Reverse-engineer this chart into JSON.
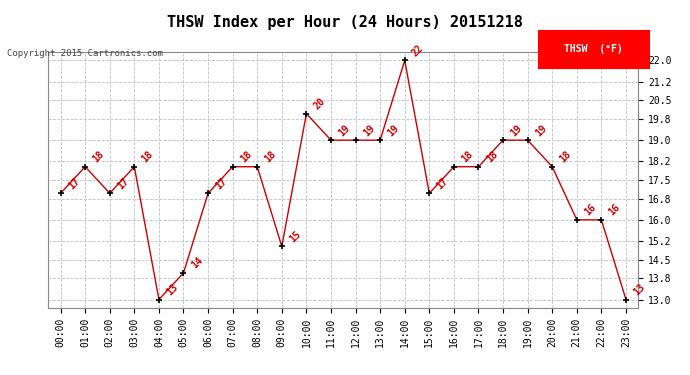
{
  "title": "THSW Index per Hour (24 Hours) 20151218",
  "copyright": "Copyright 2015 Cartronics.com",
  "legend_label": "THSW  (°F)",
  "hours": [
    0,
    1,
    2,
    3,
    4,
    5,
    6,
    7,
    8,
    9,
    10,
    11,
    12,
    13,
    14,
    15,
    16,
    17,
    18,
    19,
    20,
    21,
    22,
    23
  ],
  "hour_labels": [
    "00:00",
    "01:00",
    "02:00",
    "03:00",
    "04:00",
    "05:00",
    "06:00",
    "07:00",
    "08:00",
    "09:00",
    "10:00",
    "11:00",
    "12:00",
    "13:00",
    "14:00",
    "15:00",
    "16:00",
    "17:00",
    "18:00",
    "19:00",
    "20:00",
    "21:00",
    "22:00",
    "23:00"
  ],
  "values": [
    17,
    18,
    17,
    18,
    13,
    14,
    17,
    18,
    18,
    15,
    20,
    19,
    19,
    19,
    22,
    17,
    18,
    18,
    19,
    19,
    18,
    16,
    16,
    13
  ],
  "line_color": "#cc0000",
  "marker_color": "#000000",
  "bg_color": "#ffffff",
  "grid_color": "#c0c0c0",
  "yticks": [
    13.0,
    13.8,
    14.5,
    15.2,
    16.0,
    16.8,
    17.5,
    18.2,
    19.0,
    19.8,
    20.5,
    21.2,
    22.0
  ],
  "ylim": [
    12.7,
    22.3
  ],
  "xlim": [
    -0.5,
    23.5
  ],
  "title_fontsize": 11,
  "label_fontsize": 7,
  "annotation_fontsize": 7,
  "copyright_fontsize": 6.5
}
